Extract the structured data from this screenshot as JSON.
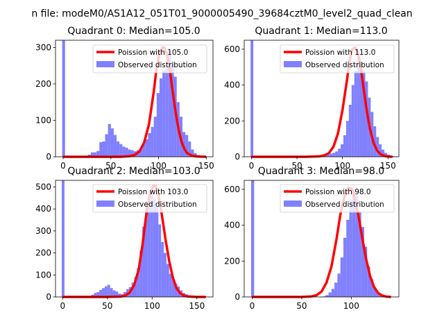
{
  "figure": {
    "suptitle": "n file: modeM0/AS1A12_051T01_9000005490_39684cztM0_level2_quad_clean"
  },
  "colors": {
    "observed": "#8080ff",
    "poisson": "#ff0000",
    "axis": "#000000"
  },
  "chart_data": [
    {
      "type": "bar",
      "title": "Quadrant 0: Median=105.0",
      "xlim": [
        -8,
        157
      ],
      "ylim": [
        0,
        320
      ],
      "xticks": [
        0,
        50,
        100,
        150
      ],
      "yticks": [
        0,
        100,
        200,
        300
      ],
      "legend": [
        "Poission with 105.0",
        "Observed distribution"
      ],
      "legend_position": "top-right",
      "bin_width": 3,
      "bin_starts": [
        -1,
        2,
        5,
        8,
        11,
        14,
        17,
        20,
        23,
        26,
        29,
        32,
        35,
        38,
        41,
        44,
        47,
        50,
        53,
        56,
        59,
        62,
        65,
        68,
        71,
        74,
        77,
        80,
        83,
        86,
        89,
        92,
        95,
        98,
        101,
        104,
        107,
        110,
        113,
        116,
        119,
        122,
        125,
        128,
        131,
        134,
        137,
        140,
        143,
        146
      ],
      "counts": [
        320,
        0,
        0,
        0,
        0,
        0,
        0,
        0,
        3,
        6,
        12,
        12,
        16,
        40,
        42,
        62,
        90,
        78,
        60,
        42,
        35,
        28,
        25,
        20,
        18,
        15,
        18,
        22,
        35,
        48,
        65,
        82,
        110,
        175,
        215,
        235,
        245,
        290,
        260,
        220,
        150,
        110,
        68,
        60,
        42,
        20,
        10,
        5,
        2,
        0
      ],
      "poisson": [
        {
          "x": 0,
          "y": 0
        },
        {
          "x": 40,
          "y": 0
        },
        {
          "x": 60,
          "y": 0
        },
        {
          "x": 70,
          "y": 2
        },
        {
          "x": 75,
          "y": 5
        },
        {
          "x": 80,
          "y": 15
        },
        {
          "x": 85,
          "y": 40
        },
        {
          "x": 90,
          "y": 90
        },
        {
          "x": 95,
          "y": 180
        },
        {
          "x": 98,
          "y": 245
        },
        {
          "x": 101,
          "y": 285
        },
        {
          "x": 104,
          "y": 300
        },
        {
          "x": 106,
          "y": 300
        },
        {
          "x": 109,
          "y": 280
        },
        {
          "x": 112,
          "y": 235
        },
        {
          "x": 115,
          "y": 175
        },
        {
          "x": 118,
          "y": 120
        },
        {
          "x": 121,
          "y": 75
        },
        {
          "x": 124,
          "y": 42
        },
        {
          "x": 127,
          "y": 22
        },
        {
          "x": 130,
          "y": 10
        },
        {
          "x": 135,
          "y": 3
        },
        {
          "x": 140,
          "y": 1
        },
        {
          "x": 150,
          "y": 0
        }
      ]
    },
    {
      "type": "bar",
      "title": "Quadrant 1: Median=113.0",
      "xlim": [
        -8,
        162
      ],
      "ylim": [
        0,
        650
      ],
      "xticks": [
        0,
        50,
        100,
        150
      ],
      "yticks": [
        0,
        200,
        400,
        600
      ],
      "legend": [
        "Poission with 113.0",
        "Observed distribution"
      ],
      "legend_position": "top-right",
      "bin_width": 3,
      "bin_starts": [
        -1,
        2,
        5,
        8,
        11,
        14,
        17,
        20,
        23,
        26,
        29,
        32,
        35,
        38,
        41,
        44,
        47,
        50,
        53,
        56,
        59,
        62,
        65,
        68,
        71,
        74,
        77,
        80,
        83,
        86,
        89,
        92,
        95,
        98,
        101,
        104,
        107,
        110,
        113,
        116,
        119,
        122,
        125,
        128,
        131,
        134,
        137,
        140,
        143,
        146,
        149,
        152,
        155,
        158
      ],
      "counts": [
        650,
        0,
        0,
        0,
        0,
        0,
        0,
        0,
        0,
        0,
        0,
        0,
        0,
        0,
        0,
        0,
        0,
        0,
        0,
        0,
        0,
        0,
        0,
        0,
        0,
        0,
        0,
        8,
        12,
        18,
        22,
        30,
        45,
        70,
        120,
        200,
        290,
        400,
        480,
        560,
        520,
        480,
        420,
        330,
        250,
        170,
        110,
        70,
        40,
        22,
        12,
        6,
        3,
        1
      ],
      "poisson": [
        {
          "x": 0,
          "y": 0
        },
        {
          "x": 60,
          "y": 0
        },
        {
          "x": 75,
          "y": 3
        },
        {
          "x": 80,
          "y": 8
        },
        {
          "x": 85,
          "y": 20
        },
        {
          "x": 90,
          "y": 55
        },
        {
          "x": 95,
          "y": 130
        },
        {
          "x": 100,
          "y": 260
        },
        {
          "x": 105,
          "y": 430
        },
        {
          "x": 108,
          "y": 540
        },
        {
          "x": 111,
          "y": 600
        },
        {
          "x": 114,
          "y": 610
        },
        {
          "x": 117,
          "y": 580
        },
        {
          "x": 120,
          "y": 500
        },
        {
          "x": 123,
          "y": 390
        },
        {
          "x": 126,
          "y": 280
        },
        {
          "x": 130,
          "y": 160
        },
        {
          "x": 134,
          "y": 80
        },
        {
          "x": 138,
          "y": 35
        },
        {
          "x": 142,
          "y": 14
        },
        {
          "x": 146,
          "y": 5
        },
        {
          "x": 150,
          "y": 2
        },
        {
          "x": 155,
          "y": 0
        }
      ]
    },
    {
      "type": "bar",
      "title": "Quadrant 2: Median=103.0",
      "xlim": [
        -8,
        168
      ],
      "ylim": [
        0,
        530
      ],
      "xticks": [
        0,
        50,
        100,
        150
      ],
      "yticks": [
        0,
        100,
        200,
        300,
        400,
        500
      ],
      "legend": [
        "Poission with 103.0",
        "Observed distribution"
      ],
      "legend_position": "top-right",
      "bin_width": 3,
      "bin_starts": [
        -1,
        2,
        5,
        8,
        11,
        14,
        17,
        20,
        23,
        26,
        29,
        32,
        35,
        38,
        41,
        44,
        47,
        50,
        53,
        56,
        59,
        62,
        65,
        68,
        71,
        74,
        77,
        80,
        83,
        86,
        89,
        92,
        95,
        98,
        101,
        104,
        107,
        110,
        113,
        116,
        119,
        122,
        125,
        128,
        131,
        134,
        137,
        140,
        143,
        146,
        149,
        152,
        155,
        158
      ],
      "counts": [
        530,
        0,
        0,
        0,
        0,
        0,
        0,
        0,
        0,
        0,
        3,
        10,
        18,
        22,
        32,
        40,
        48,
        55,
        40,
        30,
        25,
        15,
        12,
        22,
        35,
        45,
        65,
        90,
        130,
        210,
        320,
        410,
        430,
        460,
        445,
        410,
        330,
        250,
        200,
        150,
        105,
        80,
        60,
        48,
        30,
        18,
        12,
        8,
        5,
        3,
        2,
        1,
        0,
        0
      ],
      "poisson": [
        {
          "x": 0,
          "y": 0
        },
        {
          "x": 50,
          "y": 0
        },
        {
          "x": 65,
          "y": 2
        },
        {
          "x": 70,
          "y": 6
        },
        {
          "x": 75,
          "y": 20
        },
        {
          "x": 80,
          "y": 55
        },
        {
          "x": 85,
          "y": 125
        },
        {
          "x": 89,
          "y": 230
        },
        {
          "x": 93,
          "y": 360
        },
        {
          "x": 97,
          "y": 460
        },
        {
          "x": 101,
          "y": 505
        },
        {
          "x": 104,
          "y": 505
        },
        {
          "x": 107,
          "y": 465
        },
        {
          "x": 111,
          "y": 370
        },
        {
          "x": 115,
          "y": 260
        },
        {
          "x": 119,
          "y": 165
        },
        {
          "x": 123,
          "y": 90
        },
        {
          "x": 127,
          "y": 42
        },
        {
          "x": 131,
          "y": 18
        },
        {
          "x": 135,
          "y": 7
        },
        {
          "x": 140,
          "y": 2
        },
        {
          "x": 150,
          "y": 0
        },
        {
          "x": 160,
          "y": 0
        }
      ]
    },
    {
      "type": "bar",
      "title": "Quadrant 3: Median=98.0",
      "xlim": [
        -8,
        148
      ],
      "ylim": [
        0,
        650
      ],
      "xticks": [
        0,
        50,
        100
      ],
      "yticks": [
        0,
        200,
        400,
        600
      ],
      "legend": [
        "Poission with 98.0",
        "Observed distribution"
      ],
      "legend_position": "top-right",
      "bin_width": 3,
      "bin_starts": [
        -1,
        2,
        5,
        8,
        11,
        14,
        17,
        20,
        23,
        26,
        29,
        32,
        35,
        38,
        41,
        44,
        47,
        50,
        53,
        56,
        59,
        62,
        65,
        68,
        71,
        74,
        77,
        80,
        83,
        86,
        89,
        92,
        95,
        98,
        101,
        104,
        107,
        110,
        113,
        116,
        119,
        122,
        125,
        128,
        131,
        134,
        137
      ],
      "counts": [
        650,
        0,
        0,
        0,
        0,
        0,
        0,
        0,
        0,
        0,
        0,
        0,
        0,
        0,
        0,
        0,
        0,
        0,
        0,
        0,
        0,
        0,
        0,
        0,
        3,
        10,
        25,
        45,
        80,
        130,
        220,
        330,
        430,
        540,
        600,
        560,
        480,
        390,
        280,
        170,
        100,
        50,
        25,
        12,
        5,
        2,
        1
      ],
      "poisson": [
        {
          "x": 0,
          "y": 0
        },
        {
          "x": 50,
          "y": 0
        },
        {
          "x": 60,
          "y": 3
        },
        {
          "x": 65,
          "y": 10
        },
        {
          "x": 70,
          "y": 30
        },
        {
          "x": 75,
          "y": 80
        },
        {
          "x": 80,
          "y": 170
        },
        {
          "x": 85,
          "y": 320
        },
        {
          "x": 89,
          "y": 460
        },
        {
          "x": 93,
          "y": 560
        },
        {
          "x": 97,
          "y": 610
        },
        {
          "x": 100,
          "y": 605
        },
        {
          "x": 103,
          "y": 560
        },
        {
          "x": 107,
          "y": 460
        },
        {
          "x": 111,
          "y": 330
        },
        {
          "x": 115,
          "y": 210
        },
        {
          "x": 119,
          "y": 115
        },
        {
          "x": 123,
          "y": 55
        },
        {
          "x": 127,
          "y": 22
        },
        {
          "x": 131,
          "y": 8
        },
        {
          "x": 135,
          "y": 2
        },
        {
          "x": 140,
          "y": 0
        }
      ]
    }
  ]
}
